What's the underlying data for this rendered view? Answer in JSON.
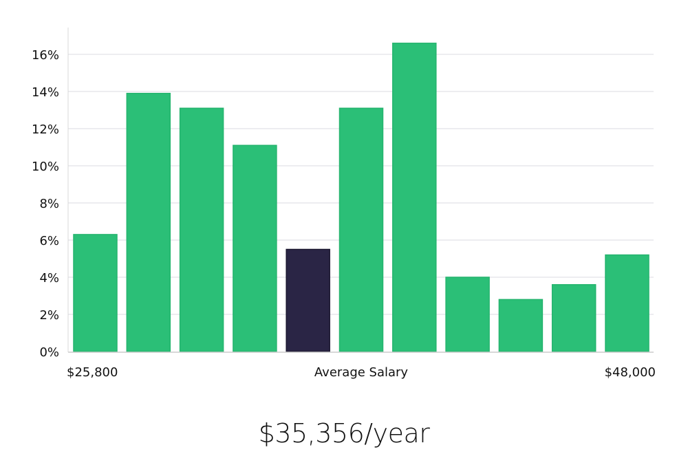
{
  "chart_data": {
    "type": "bar",
    "title": "",
    "xlabel": "Average Salary",
    "ylabel": "",
    "ylim": [
      0,
      17.4
    ],
    "yticks": [
      0,
      2,
      4,
      6,
      8,
      10,
      12,
      14,
      16
    ],
    "ytick_labels": [
      "0%",
      "2%",
      "4%",
      "6%",
      "8%",
      "10%",
      "12%",
      "14%",
      "16%"
    ],
    "x_min_label": "$25,800",
    "x_max_label": "$48,000",
    "values": [
      6.3,
      13.9,
      13.1,
      11.1,
      5.5,
      13.1,
      16.6,
      4.0,
      2.8,
      3.6,
      5.2
    ],
    "highlight_index": 4,
    "grid": true,
    "colors": {
      "bar": "#2bbf77",
      "highlight": "#2a2545",
      "grid": "#e2e2e6",
      "axis": "#cccccc"
    }
  },
  "summary": {
    "value": "$35,356/year"
  }
}
